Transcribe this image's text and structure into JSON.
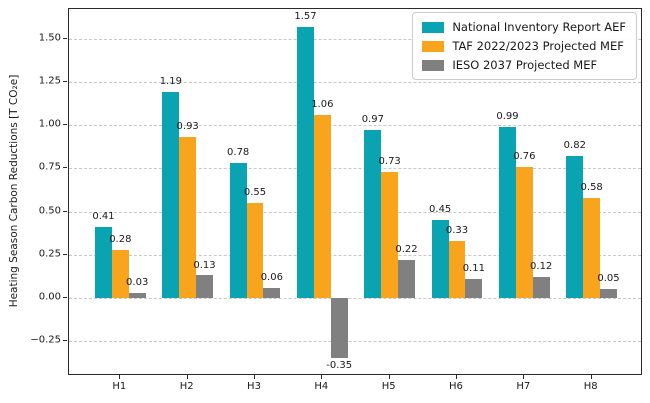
{
  "chart_data": {
    "type": "bar",
    "title": "",
    "ylabel": "Heating Season Carbon Reductions [T CO₂e]",
    "xlabel": "",
    "categories": [
      "H1",
      "H2",
      "H3",
      "H4",
      "H5",
      "H6",
      "H7",
      "H8"
    ],
    "series": [
      {
        "name": "National Inventory Report AEF",
        "color": "#09a3b2",
        "values": [
          0.41,
          1.19,
          0.78,
          1.57,
          0.97,
          0.45,
          0.99,
          0.82
        ]
      },
      {
        "name": "TAF 2022/2023 Projected MEF",
        "color": "#f8a51d",
        "values": [
          0.28,
          0.93,
          0.55,
          1.06,
          0.73,
          0.33,
          0.76,
          0.58
        ]
      },
      {
        "name": "IESO 2037 Projected MEF",
        "color": "#808080",
        "values": [
          0.03,
          0.13,
          0.06,
          -0.35,
          0.22,
          0.11,
          0.12,
          0.05
        ]
      }
    ],
    "yticks": [
      -0.25,
      0.0,
      0.25,
      0.5,
      0.75,
      1.0,
      1.25,
      1.5
    ],
    "ytick_labels": [
      "−0.25",
      "0.00",
      "0.25",
      "0.50",
      "0.75",
      "1.00",
      "1.25",
      "1.50"
    ],
    "ylim": [
      -0.452,
      1.673
    ],
    "grid": true,
    "grid_style": "dashed",
    "legend_position": "upper right",
    "bar_value_labels": true
  },
  "colors": {
    "grid": "#c8c8c8",
    "spine": "#2a2a2a",
    "text": "#1a1a1a",
    "legend_border": "#cccccc",
    "background": "#ffffff"
  }
}
